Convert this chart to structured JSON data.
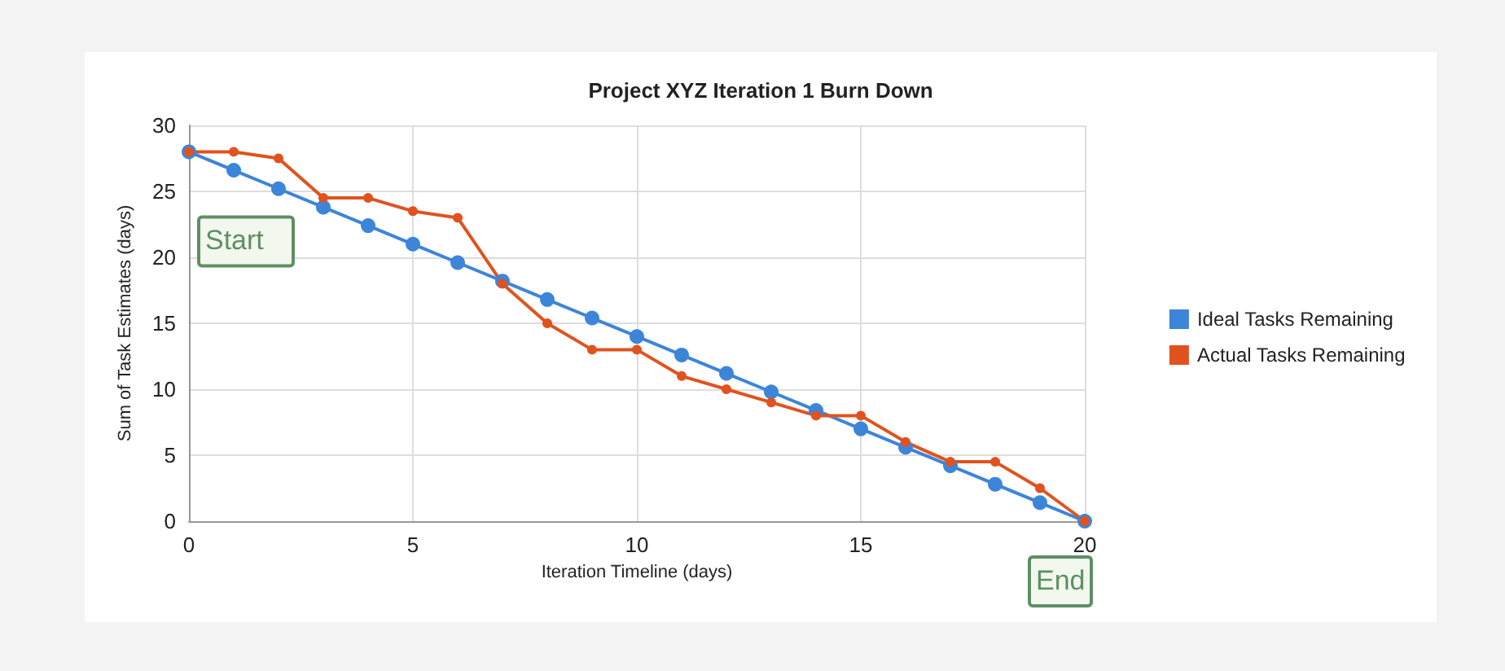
{
  "chart_data": {
    "type": "line",
    "title": "Project XYZ Iteration 1 Burn Down",
    "xlabel": "Iteration Timeline (days)",
    "ylabel": "Sum of Task Estimates (days)",
    "x": [
      0,
      1,
      2,
      3,
      4,
      5,
      6,
      7,
      8,
      9,
      10,
      11,
      12,
      13,
      14,
      15,
      16,
      17,
      18,
      19,
      20
    ],
    "series": [
      {
        "name": "Ideal Tasks Remaining",
        "color": "#3d85d8",
        "values": [
          28,
          26.6,
          25.2,
          23.8,
          22.4,
          21,
          19.6,
          18.2,
          16.8,
          15.4,
          14,
          12.6,
          11.2,
          9.8,
          8.4,
          7,
          5.6,
          4.2,
          2.8,
          1.4,
          0
        ]
      },
      {
        "name": "Actual Tasks Remaining",
        "color": "#e0531f",
        "values": [
          28,
          28,
          27.5,
          24.5,
          24.5,
          23.5,
          23,
          18,
          15,
          13,
          13,
          11,
          10,
          9,
          8,
          8,
          6,
          4.5,
          4.5,
          2.5,
          0
        ]
      }
    ],
    "xlim": [
      0,
      20
    ],
    "xticks": [
      0,
      5,
      10,
      15,
      20
    ],
    "ylim": [
      0,
      30
    ],
    "yticks": [
      0,
      5,
      10,
      15,
      20,
      25,
      30
    ],
    "grid": true,
    "legend": "right",
    "marker": "circle",
    "line_style": "solid",
    "annotations": [
      {
        "text": "Start",
        "x": 0,
        "y": 28
      },
      {
        "text": "End",
        "x": 20,
        "y": 0
      }
    ]
  }
}
